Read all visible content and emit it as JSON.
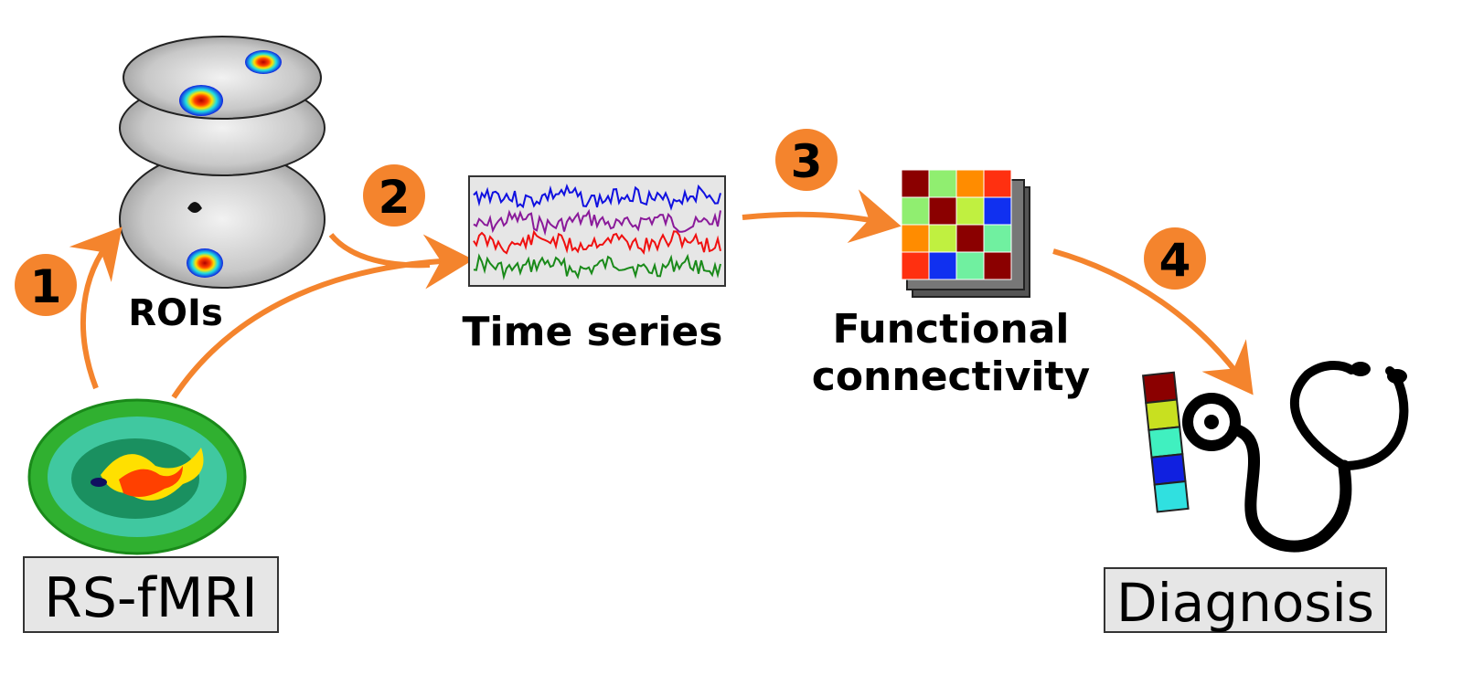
{
  "steps": [
    {
      "number": "1"
    },
    {
      "number": "2"
    },
    {
      "number": "3"
    },
    {
      "number": "4"
    }
  ],
  "labels": {
    "rois": "ROIs",
    "time_series": "Time series",
    "functional_line1": "Functional",
    "functional_line2": "connectivity",
    "rs_fmri": "RS-fMRI",
    "diagnosis": "Diagnosis"
  },
  "colors": {
    "arrow": "#F4842D",
    "step_circle": "#F4842D",
    "box_fill": "#E6E6E6",
    "ts_blue": "#1010E0",
    "ts_purple": "#8A1A9A",
    "ts_red": "#F01010",
    "ts_green": "#1A8A1A"
  },
  "connectivity_matrix": [
    [
      "#8B0000",
      "#90EE70",
      "#FF8C00",
      "#FF3010"
    ],
    [
      "#90EE70",
      "#8B0000",
      "#C0F040",
      "#1030F0"
    ],
    [
      "#FF8C00",
      "#C0F040",
      "#8B0000",
      "#70F0A0"
    ],
    [
      "#FF3010",
      "#1030F0",
      "#70F0A0",
      "#8B0000"
    ]
  ],
  "diagnosis_bar": [
    "#8B0000",
    "#C8E020",
    "#40F0C0",
    "#1020E0",
    "#30E0E0"
  ]
}
